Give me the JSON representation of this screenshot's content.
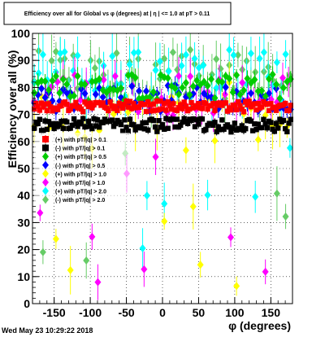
{
  "chart_data": {
    "type": "scatter",
    "title": "Efficiency over all for Global vs φ (degrees) at | η | <= 1.0 at pT > 0.11",
    "xlabel": "φ (degrees)",
    "ylabel": "Efficiency over all (%)",
    "xlim": [
      -180,
      180
    ],
    "ylim": [
      0,
      100
    ],
    "xticks": [
      -150,
      -100,
      -50,
      0,
      50,
      100,
      150
    ],
    "yticks": [
      0,
      10,
      20,
      30,
      40,
      50,
      60,
      70,
      80,
      90,
      100
    ],
    "grid": true,
    "legend_position": "center-left",
    "footer": "Wed May 23 10:29:22 2018",
    "series": [
      {
        "name": "(+) with pT/|q| > 0.1",
        "color": "#ff0000",
        "marker": "square",
        "level": 73,
        "spread": 2.0,
        "err": 1.0,
        "step": 2.5,
        "seed": 1
      },
      {
        "name": "(-) with pT/|q| > 0.1",
        "color": "#000000",
        "marker": "square",
        "level": 66,
        "spread": 2.5,
        "err": 1.0,
        "step": 2.5,
        "seed": 2
      },
      {
        "name": "(+) with pT/|q| > 0.5",
        "color": "#00cc00",
        "marker": "diamond",
        "level": 80,
        "spread": 5,
        "err": 2.5,
        "step": 5,
        "seed": 3
      },
      {
        "name": "(-) with pT/|q| > 0.5",
        "color": "#0000ff",
        "marker": "diamond",
        "level": 76,
        "spread": 5,
        "err": 2.5,
        "step": 5,
        "seed": 4
      },
      {
        "name": "(+) with pT/|q| > 1.0",
        "color": "#ffff00",
        "marker": "diamond",
        "level": 70,
        "spread": 14,
        "err": 6,
        "step": 10,
        "seed": 5
      },
      {
        "name": "(-) with pT/|q| > 1.0",
        "color": "#ff00ff",
        "marker": "diamond",
        "level": 77,
        "spread": 8,
        "err": 5,
        "step": 8,
        "seed": 6
      },
      {
        "name": "(+) with pT/|q| > 2.0",
        "color": "#00ffff",
        "marker": "diamond",
        "level": 84,
        "spread": 10,
        "err": 7,
        "step": 6,
        "seed": 7
      },
      {
        "name": "(-) with pT/|q| > 2.0",
        "color": "#66cc66",
        "marker": "diamond",
        "level": 84,
        "spread": 10,
        "err": 7,
        "step": 6,
        "seed": 8
      }
    ]
  }
}
